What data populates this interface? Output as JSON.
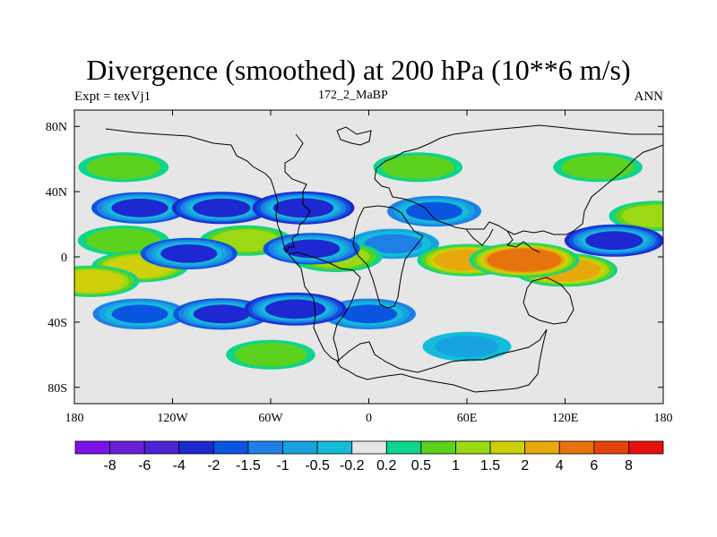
{
  "title": "Divergence (smoothed) at 200 hPa (10**6 m/s)",
  "left_label": "Expt = texVj1",
  "center_label": "172_2_MaBP",
  "right_label": "ANN",
  "x_ticks": [
    {
      "value": -180,
      "label": "180"
    },
    {
      "value": -120,
      "label": "120W"
    },
    {
      "value": -60,
      "label": "60W"
    },
    {
      "value": 0,
      "label": "0"
    },
    {
      "value": 60,
      "label": "60E"
    },
    {
      "value": 120,
      "label": "120E"
    },
    {
      "value": 180,
      "label": "180"
    }
  ],
  "y_ticks": [
    {
      "value": 80,
      "label": "80N"
    },
    {
      "value": 40,
      "label": "40N"
    },
    {
      "value": 0,
      "label": "0"
    },
    {
      "value": -40,
      "label": "40S"
    },
    {
      "value": -80,
      "label": "80S"
    }
  ],
  "colorbar": {
    "colors": [
      "#7a14e6",
      "#6a1ed8",
      "#4a25d2",
      "#1e28d0",
      "#0a55e0",
      "#1e80e6",
      "#17a2e0",
      "#14bcda",
      "#e6e6e6",
      "#0ed48c",
      "#5ad21e",
      "#9cd814",
      "#cdd00a",
      "#e6a80c",
      "#e6740e",
      "#e6420c",
      "#e6100c"
    ],
    "labels": [
      "-8",
      "-6",
      "-4",
      "-2",
      "-1.5",
      "-1",
      "-0.5",
      "-0.2",
      "0.2",
      "0.5",
      "1",
      "1.5",
      "2",
      "4",
      "6",
      "8"
    ]
  },
  "chart_data": {
    "type": "filled-contour-map",
    "title": "Divergence (smoothed) at 200 hPa (10**6 m/s)",
    "experiment": "texVj1",
    "case": "172_2_MaBP",
    "season": "ANN",
    "units": "10**6 m/s",
    "lon_range": [
      -180,
      180
    ],
    "lat_range": [
      -90,
      90
    ],
    "levels": [
      -8,
      -6,
      -4,
      -2,
      -1.5,
      -1,
      -0.5,
      -0.2,
      0.2,
      0.5,
      1,
      1.5,
      2,
      4,
      6,
      8
    ],
    "features": [
      {
        "lon": 95,
        "lat": -2,
        "value": 4.5
      },
      {
        "lon": 120,
        "lat": -8,
        "value": 3.5
      },
      {
        "lon": 60,
        "lat": -2,
        "value": 2.5
      },
      {
        "lon": -140,
        "lat": -6,
        "value": 2.0
      },
      {
        "lon": -170,
        "lat": -15,
        "value": 2.0
      },
      {
        "lon": -75,
        "lat": 10,
        "value": 1.2
      },
      {
        "lon": -20,
        "lat": 0,
        "value": 1.2
      },
      {
        "lon": -150,
        "lat": 10,
        "value": 1.0
      },
      {
        "lon": 175,
        "lat": 25,
        "value": 1.2
      },
      {
        "lon": -40,
        "lat": 30,
        "value": -3.0
      },
      {
        "lon": -90,
        "lat": 30,
        "value": -2.5
      },
      {
        "lon": -140,
        "lat": 30,
        "value": -2.0
      },
      {
        "lon": 40,
        "lat": 28,
        "value": -1.5
      },
      {
        "lon": 150,
        "lat": 10,
        "value": -2.5
      },
      {
        "lon": -45,
        "lat": -32,
        "value": -3.0
      },
      {
        "lon": -90,
        "lat": -35,
        "value": -2.0
      },
      {
        "lon": -140,
        "lat": -35,
        "value": -1.5
      },
      {
        "lon": 0,
        "lat": -35,
        "value": -1.5
      },
      {
        "lon": -110,
        "lat": 2,
        "value": -2.0
      },
      {
        "lon": -35,
        "lat": 5,
        "value": -2.0
      },
      {
        "lon": 15,
        "lat": 8,
        "value": -1.0
      },
      {
        "lon": -150,
        "lat": 55,
        "value": 0.8
      },
      {
        "lon": 30,
        "lat": 55,
        "value": 0.6
      },
      {
        "lon": 140,
        "lat": 55,
        "value": 0.6
      },
      {
        "lon": -60,
        "lat": -60,
        "value": 0.6
      },
      {
        "lon": 60,
        "lat": -55,
        "value": -0.5
      }
    ]
  }
}
